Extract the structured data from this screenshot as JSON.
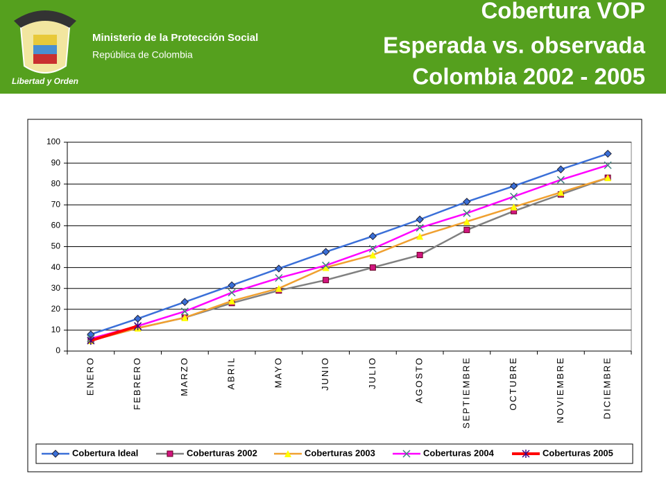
{
  "header": {
    "ministry": "Ministerio de la Protección Social",
    "country": "República de Colombia",
    "logo_text": "Libertad y Orden"
  },
  "chart_data": {
    "type": "line",
    "title": [
      "Cobertura VOP",
      "Esperada vs. observada",
      "Colombia  2002 - 2005"
    ],
    "categories": [
      "ENERO",
      "FEBRERO",
      "MARZO",
      "ABRIL",
      "MAYO",
      "JUNIO",
      "JULIO",
      "AGOSTO",
      "SEPTIEMBRE",
      "OCTUBRE",
      "NOVIEMBRE",
      "DICIEMBRE"
    ],
    "series": [
      {
        "name": "Cobertura Ideal",
        "color": "#3a6fd8",
        "marker": "diamond",
        "marker_color": "#3a6fd8",
        "values": [
          8,
          15.5,
          23.5,
          31.5,
          39.5,
          47.5,
          55,
          63,
          71.5,
          79,
          87,
          94.5
        ]
      },
      {
        "name": "Coberturas 2002",
        "color": "#808080",
        "marker": "square",
        "marker_color": "#d0157f",
        "values": [
          5,
          11,
          16,
          23,
          29,
          34,
          40,
          46,
          58,
          67,
          75,
          83
        ]
      },
      {
        "name": "Coberturas 2003",
        "color": "#f0a030",
        "marker": "triangle",
        "marker_color": "#ffff00",
        "values": [
          5,
          11,
          16,
          24,
          30,
          40,
          46,
          55,
          62,
          69,
          76,
          83
        ]
      },
      {
        "name": "Coberturas 2004",
        "color": "#ff00ff",
        "marker": "x",
        "marker_color": "#3f7f7f",
        "values": [
          6,
          12,
          19,
          28,
          35,
          41,
          49,
          59,
          66,
          74,
          82,
          89
        ]
      },
      {
        "name": "Coberturas 2005",
        "color": "#ff0000",
        "marker": "star",
        "marker_color": "#400080",
        "values": [
          5,
          12,
          null,
          null,
          null,
          null,
          null,
          null,
          null,
          null,
          null,
          null
        ]
      }
    ],
    "ylim": [
      0,
      100
    ],
    "yticks": [
      0,
      10,
      20,
      30,
      40,
      50,
      60,
      70,
      80,
      90,
      100
    ],
    "grid": true,
    "legend": "bottom"
  }
}
